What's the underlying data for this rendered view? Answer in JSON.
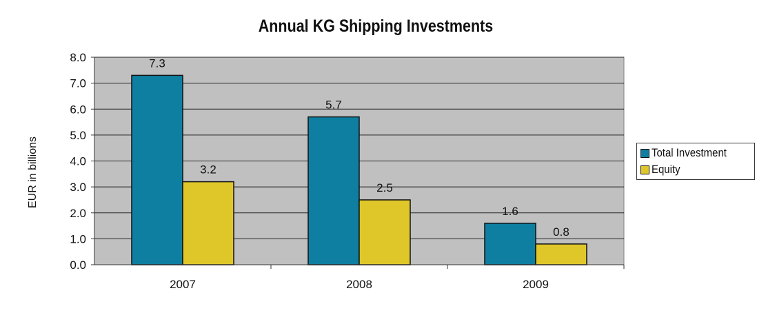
{
  "chart_data": {
    "type": "bar",
    "title": "Annual KG Shipping Investments",
    "xlabel": "",
    "ylabel": "EUR in billions",
    "categories": [
      "2007",
      "2008",
      "2009"
    ],
    "series": [
      {
        "name": "Total Investment",
        "values": [
          7.3,
          5.7,
          1.6
        ],
        "labels": [
          "7.3",
          "5.7",
          "1.6"
        ],
        "color": "#0e7fa0"
      },
      {
        "name": "Equity",
        "values": [
          3.2,
          2.5,
          0.8
        ],
        "labels": [
          "3.2",
          "2.5",
          "0.8"
        ],
        "color": "#dfc72a"
      }
    ],
    "ylim": [
      0,
      8
    ],
    "yticks": [
      "0.0",
      "1.0",
      "2.0",
      "3.0",
      "4.0",
      "5.0",
      "6.0",
      "7.0",
      "8.0"
    ],
    "grid": true,
    "legend_position": "right",
    "plot_background": "#c0c0c0"
  }
}
